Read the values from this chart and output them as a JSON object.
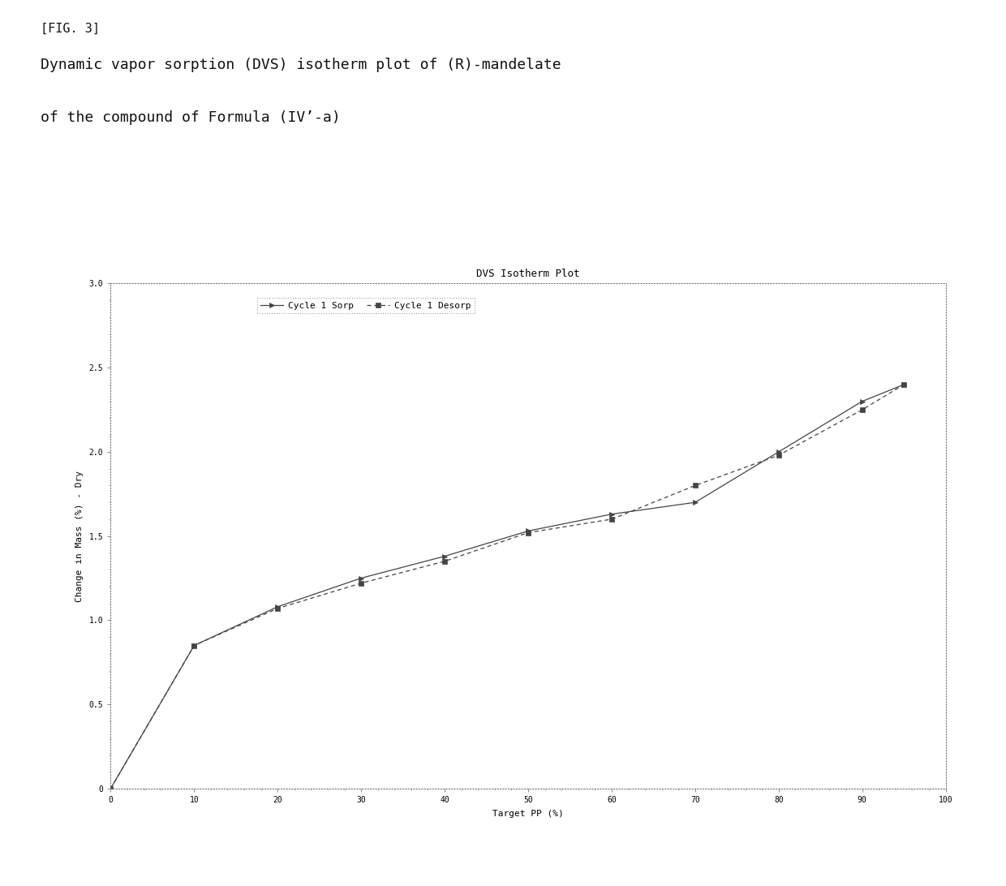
{
  "title": "DVS Isotherm Plot",
  "xlabel": "Target PP (%)",
  "ylabel": "Change in Mass (%) - Dry",
  "figure_title_line1": "[FIG. 3]",
  "figure_title_line2": "Dynamic vapor sorption (DVS) isotherm plot of (R)-mandelate",
  "figure_title_line3": "of the compound of Formula (IV’-a)",
  "xlim": [
    0,
    100
  ],
  "ylim": [
    0,
    3.0
  ],
  "xticks": [
    0,
    10,
    20,
    30,
    40,
    50,
    60,
    70,
    80,
    90,
    100
  ],
  "ytick_values": [
    0,
    0.5,
    1.0,
    1.5,
    2.0,
    2.5,
    3.0
  ],
  "ytick_labels": [
    "0",
    "0.5",
    "1.0",
    "1.5",
    "2.0",
    "2.5",
    "3.0"
  ],
  "sorp_x": [
    0,
    10,
    20,
    30,
    40,
    50,
    60,
    70,
    80,
    90,
    95
  ],
  "sorp_y": [
    0.0,
    0.85,
    1.08,
    1.25,
    1.38,
    1.53,
    1.63,
    1.7,
    2.0,
    2.3,
    2.4
  ],
  "desorp_x": [
    0,
    10,
    20,
    30,
    40,
    50,
    60,
    70,
    80,
    90,
    95
  ],
  "desorp_y": [
    0.0,
    0.85,
    1.07,
    1.22,
    1.35,
    1.52,
    1.6,
    1.8,
    1.98,
    2.25,
    2.4
  ],
  "sorp_color": "#444444",
  "desorp_color": "#444444",
  "background_color": "#ffffff",
  "plot_bg_color": "#ffffff",
  "legend_label_sorp": "Cycle 1 Sorp",
  "legend_label_desorp": "Cycle 1 Desorp",
  "title_fontsize": 9,
  "axis_label_fontsize": 8,
  "tick_fontsize": 7,
  "legend_fontsize": 8,
  "header1_fontsize": 11,
  "header2_fontsize": 13
}
